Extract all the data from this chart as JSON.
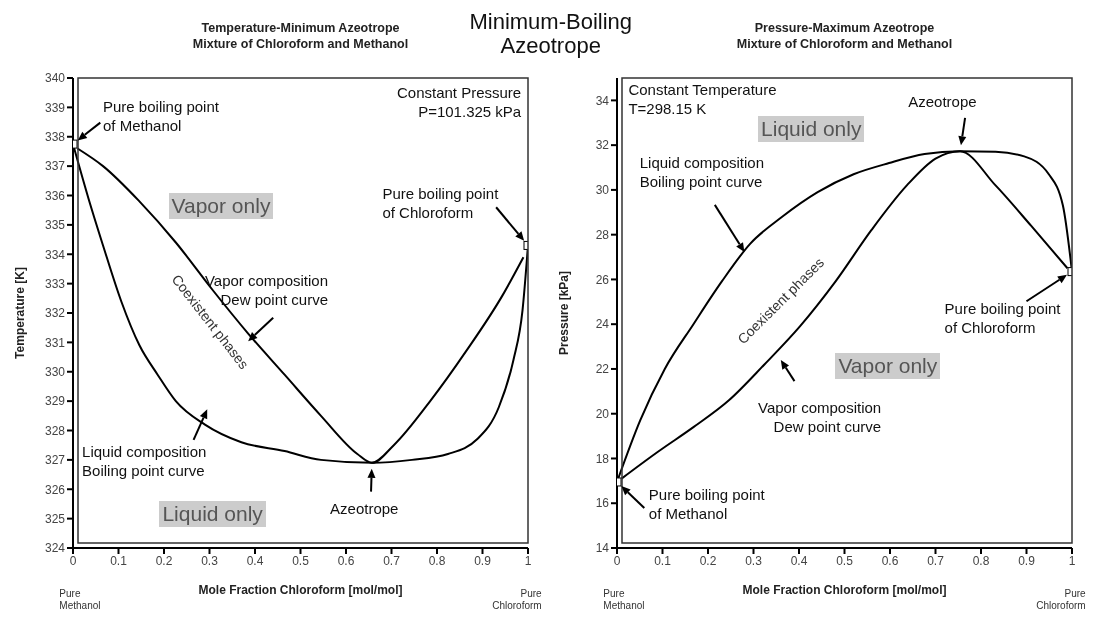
{
  "chart_data": [
    {
      "type": "line",
      "title": "Temperature-Minimum Azeotrope\nMixture of Chloroform and Methanol",
      "xlabel": "Mole Fraction Chloroform [mol/mol]",
      "ylabel": "Temperature [K]",
      "xlim": [
        0,
        1
      ],
      "xticks": [
        0,
        0.1,
        0.2,
        0.3,
        0.4,
        0.5,
        0.6,
        0.7,
        0.8,
        0.9,
        1
      ],
      "ylim": [
        324,
        340
      ],
      "yticks": [
        324,
        325,
        326,
        327,
        328,
        329,
        330,
        331,
        332,
        333,
        334,
        335,
        336,
        337,
        338,
        339,
        340
      ],
      "line_style": "solid",
      "series": [
        {
          "name": "Liquid composition\nBoiling point curve",
          "color": "#000000",
          "x": [
            0,
            0.034,
            0.066,
            0.106,
            0.146,
            0.186,
            0.226,
            0.29,
            0.37,
            0.465,
            0.545,
            0.657,
            0.745,
            0.824,
            0.888,
            0.936,
            0.968,
            0.988,
            1
          ],
          "values": [
            337.75,
            335.9,
            334.3,
            332.4,
            330.9,
            329.9,
            329.0,
            328.2,
            327.6,
            327.3,
            327.0,
            326.9,
            327.0,
            327.2,
            327.7,
            328.8,
            330.4,
            332.1,
            334.3
          ]
        },
        {
          "name": "Vapor composition\nDew point curve",
          "color": "#000000",
          "x": [
            0.01,
            0.066,
            0.146,
            0.226,
            0.306,
            0.385,
            0.465,
            0.545,
            0.625,
            0.657,
            0.705,
            0.785,
            0.864,
            0.944,
            0.99
          ],
          "values": [
            337.6,
            337.0,
            335.8,
            334.4,
            332.8,
            331.3,
            329.9,
            328.5,
            327.2,
            326.9,
            327.5,
            329.0,
            330.7,
            332.6,
            333.9
          ]
        },
        {
          "type": "scatter",
          "marker": "square",
          "color": "#000000",
          "x": [
            0,
            1
          ],
          "values": [
            337.75,
            334.3
          ]
        }
      ],
      "annotations": [
        "Minimum-Boiling\nAzeotrope",
        "Constant Pressure\nP=101.325 kPa",
        {
          "text": "Pure boiling point\nof Methanol",
          "x": 0,
          "y": 337.75
        },
        {
          "text": "Pure boiling point\nof Chloroform",
          "x": 1,
          "y": 334.3
        },
        {
          "text": "Azeotrope",
          "x": 0.657,
          "y": 326.9
        },
        "Vapor only",
        "Liquid only",
        "Coexistent phases",
        "Pure\nMethanol",
        "Pure\nChloroform"
      ]
    },
    {
      "type": "line",
      "title": "Pressure-Maximum Azeotrope\nMixture of Chloroform and Methanol",
      "xlabel": "Mole Fraction Chloroform [mol/mol]",
      "ylabel": "Pressure [kPa]",
      "xlim": [
        0,
        1
      ],
      "xticks": [
        0,
        0.1,
        0.2,
        0.3,
        0.4,
        0.5,
        0.6,
        0.7,
        0.8,
        0.9,
        1
      ],
      "ylim": [
        14,
        35
      ],
      "yticks": [
        14,
        16,
        18,
        20,
        22,
        24,
        26,
        28,
        30,
        32,
        34
      ],
      "line_style": "solid",
      "series": [
        {
          "name": "Liquid composition\nBoiling point curve",
          "color": "#000000",
          "x": [
            0,
            0.051,
            0.105,
            0.168,
            0.23,
            0.293,
            0.363,
            0.441,
            0.52,
            0.598,
            0.676,
            0.754,
            0.832,
            0.895,
            0.949,
            0.98,
            1
          ],
          "values": [
            16.95,
            19.7,
            22.0,
            24.0,
            25.9,
            27.6,
            28.8,
            29.9,
            30.7,
            31.2,
            31.6,
            31.73,
            31.7,
            31.5,
            30.7,
            29.3,
            26.35
          ]
        },
        {
          "name": "Vapor composition\nDew point curve",
          "color": "#000000",
          "x": [
            0.01,
            0.09,
            0.168,
            0.246,
            0.324,
            0.402,
            0.48,
            0.559,
            0.637,
            0.7,
            0.754,
            0.832,
            0.91,
            0.99
          ],
          "values": [
            17.1,
            18.3,
            19.4,
            20.6,
            22.2,
            23.9,
            25.9,
            28.2,
            30.2,
            31.4,
            31.73,
            30.2,
            28.4,
            26.5
          ]
        },
        {
          "type": "scatter",
          "marker": "square",
          "color": "#000000",
          "x": [
            0,
            1
          ],
          "values": [
            16.95,
            26.35
          ]
        }
      ],
      "annotations": [
        "Constant Temperature\nT=298.15 K",
        {
          "text": "Azeotrope",
          "x": 0.754,
          "y": 31.73
        },
        {
          "text": "Pure boiling point\nof Methanol",
          "x": 0,
          "y": 16.95
        },
        {
          "text": "Pure boiling point\nof Chloroform",
          "x": 1,
          "y": 26.35
        },
        "Liquid only",
        "Vapor only",
        "Coexistent phases",
        "Pure\nMethanol",
        "Pure\nChloroform"
      ]
    }
  ]
}
